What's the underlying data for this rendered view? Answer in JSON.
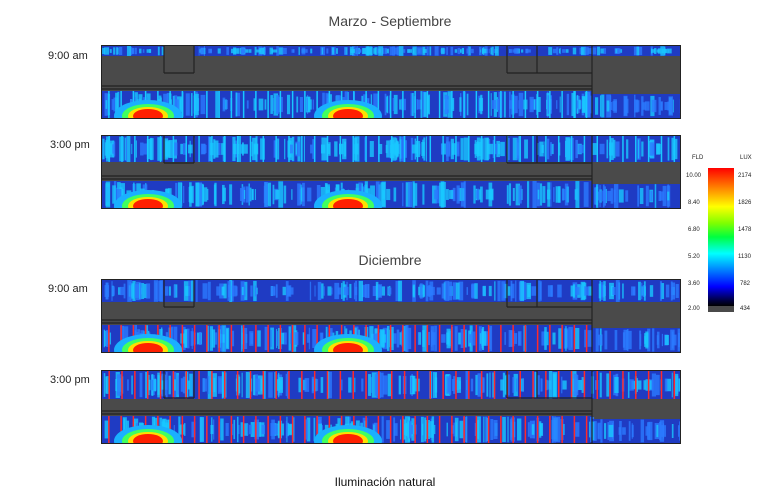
{
  "sections": [
    {
      "title": "Marzo - Septiembre",
      "rows": [
        {
          "time": "9:00 am",
          "scene": "summer-am"
        },
        {
          "time": "3:00 pm",
          "scene": "summer-pm"
        }
      ]
    },
    {
      "title": "Diciembre",
      "rows": [
        {
          "time": "9:00 am",
          "scene": "winter-am"
        },
        {
          "time": "3:00 pm",
          "scene": "winter-pm"
        }
      ]
    }
  ],
  "legend": {
    "fld_header": "FLD",
    "lux_header": "LUX",
    "fld_ticks": [
      "10.00",
      "8.40",
      "6.80",
      "5.20",
      "3.60",
      "2.00"
    ],
    "lux_ticks": [
      "2174",
      "1826",
      "1478",
      "1130",
      "782",
      "434"
    ]
  },
  "caption": "Iluminación natural",
  "colors": {
    "background_plan": "#4a4a4a",
    "high": "#ff0000",
    "mid": "#00ff40",
    "low": "#0000ff"
  }
}
